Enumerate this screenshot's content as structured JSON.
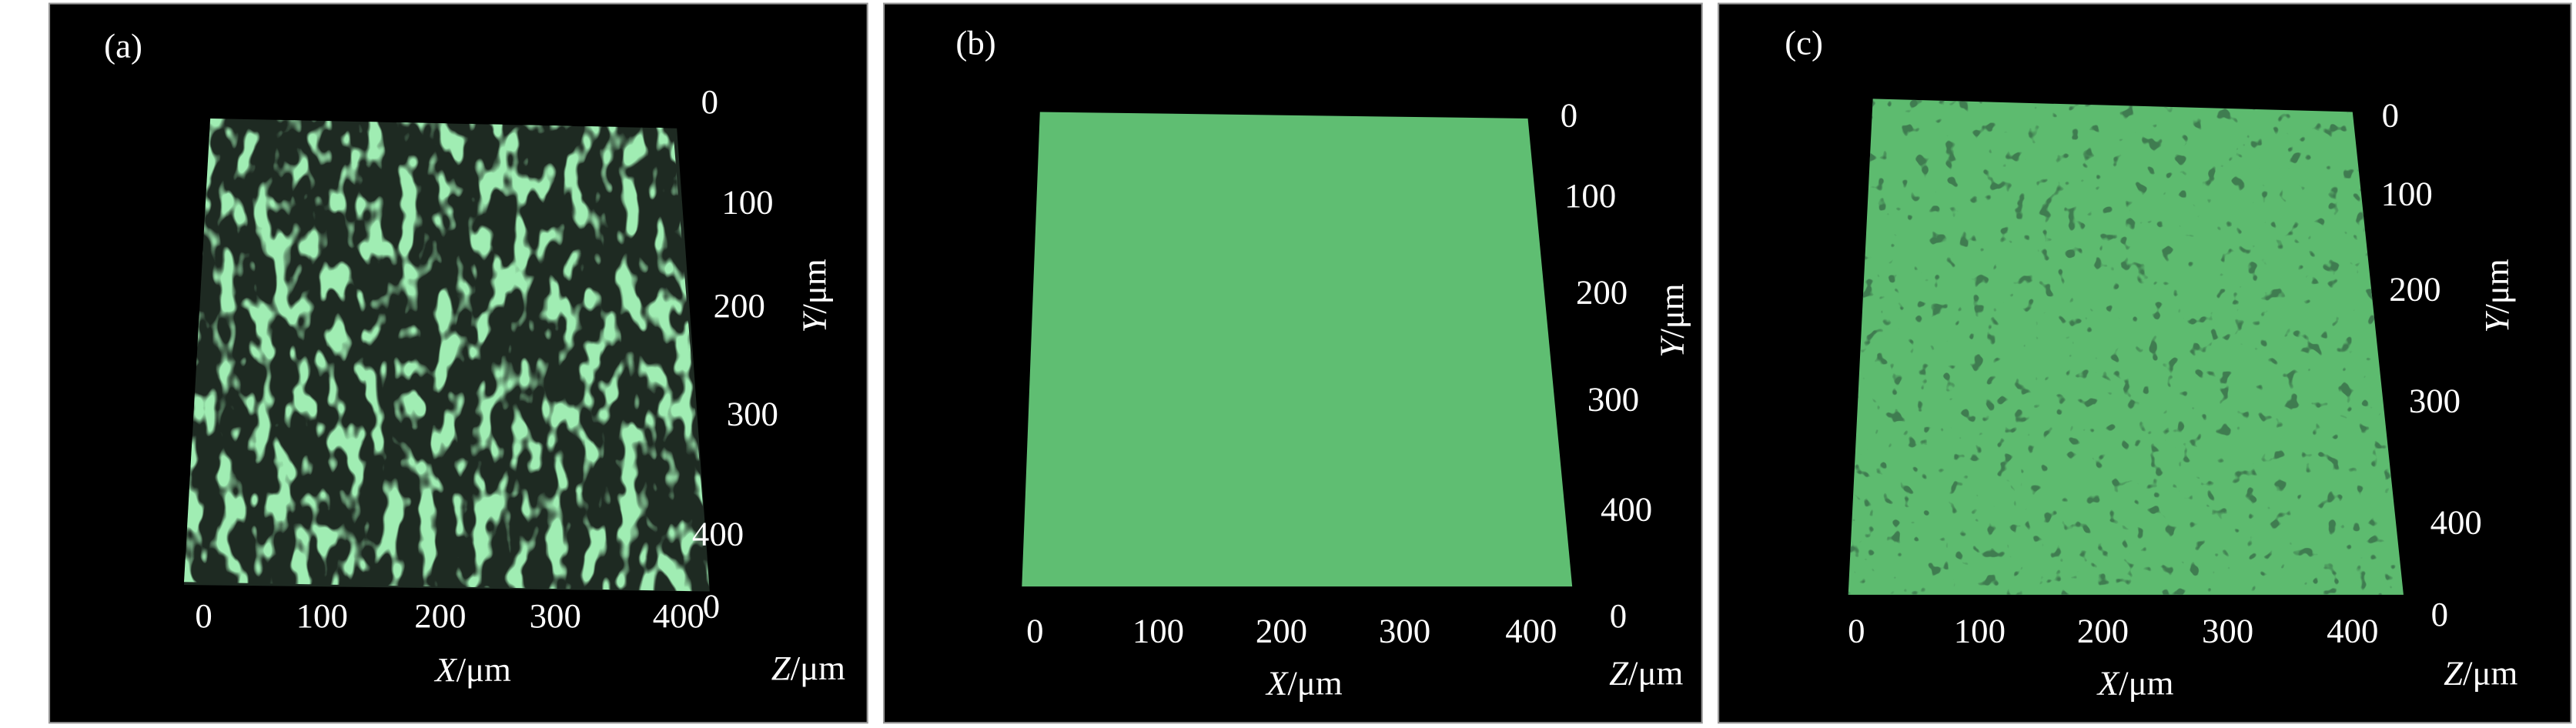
{
  "panels": [
    {
      "label": "(a)",
      "x_ticks": [
        "0",
        "100",
        "200",
        "300",
        "400"
      ],
      "y_ticks": [
        "0",
        "100",
        "200",
        "300",
        "400"
      ],
      "z_tick": "0",
      "x_title": {
        "symbol": "X",
        "unit": "/μm"
      },
      "y_title": {
        "symbol": "Y",
        "unit": "/μm"
      },
      "z_title": {
        "symbol": "Z",
        "unit": "/μm"
      }
    },
    {
      "label": "(b)",
      "x_ticks": [
        "0",
        "100",
        "200",
        "300",
        "400"
      ],
      "y_ticks": [
        "0",
        "100",
        "200",
        "300",
        "400"
      ],
      "z_tick": "0",
      "x_title": {
        "symbol": "X",
        "unit": "/μm"
      },
      "y_title": {
        "symbol": "Y",
        "unit": "/μm"
      },
      "z_title": {
        "symbol": "Z",
        "unit": "/μm"
      }
    },
    {
      "label": "(c)",
      "x_ticks": [
        "0",
        "100",
        "200",
        "300",
        "400"
      ],
      "y_ticks": [
        "0",
        "100",
        "200",
        "300",
        "400"
      ],
      "z_tick": "0",
      "x_title": {
        "symbol": "X",
        "unit": "/μm"
      },
      "y_title": {
        "symbol": "Y",
        "unit": "/μm"
      },
      "z_title": {
        "symbol": "Z",
        "unit": "/μm"
      }
    }
  ]
}
